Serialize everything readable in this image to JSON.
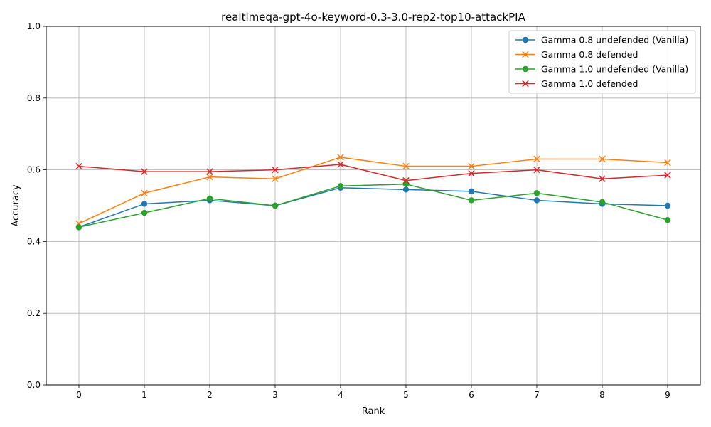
{
  "chart_data": {
    "type": "line",
    "title": "realtimeqa-gpt-4o-keyword-0.3-3.0-rep2-top10-attackPIA",
    "xlabel": "Rank",
    "ylabel": "Accuracy",
    "x": [
      0,
      1,
      2,
      3,
      4,
      5,
      6,
      7,
      8,
      9
    ],
    "xticks": [
      "0",
      "1",
      "2",
      "3",
      "4",
      "5",
      "6",
      "7",
      "8",
      "9"
    ],
    "ylim": [
      0.0,
      1.0
    ],
    "yticks": [
      "0.0",
      "0.2",
      "0.4",
      "0.6",
      "0.8",
      "1.0"
    ],
    "grid": true,
    "legend_position": "top-right",
    "series": [
      {
        "name": "Gamma 0.8 undefended (Vanilla)",
        "color": "#1f77b4",
        "marker": "circle",
        "values": [
          0.44,
          0.505,
          0.515,
          0.5,
          0.55,
          0.545,
          0.54,
          0.515,
          0.505,
          0.5
        ]
      },
      {
        "name": "Gamma 0.8 defended",
        "color": "#ff7f0e",
        "marker": "x",
        "values": [
          0.45,
          0.535,
          0.58,
          0.575,
          0.635,
          0.61,
          0.61,
          0.63,
          0.63,
          0.62
        ]
      },
      {
        "name": "Gamma 1.0 undefended (Vanilla)",
        "color": "#2ca02c",
        "marker": "circle",
        "values": [
          0.44,
          0.48,
          0.52,
          0.5,
          0.555,
          0.56,
          0.515,
          0.535,
          0.51,
          0.46
        ]
      },
      {
        "name": "Gamma 1.0 defended",
        "color": "#d62728",
        "marker": "x",
        "values": [
          0.61,
          0.595,
          0.595,
          0.6,
          0.615,
          0.57,
          0.59,
          0.6,
          0.575,
          0.585
        ]
      }
    ]
  }
}
